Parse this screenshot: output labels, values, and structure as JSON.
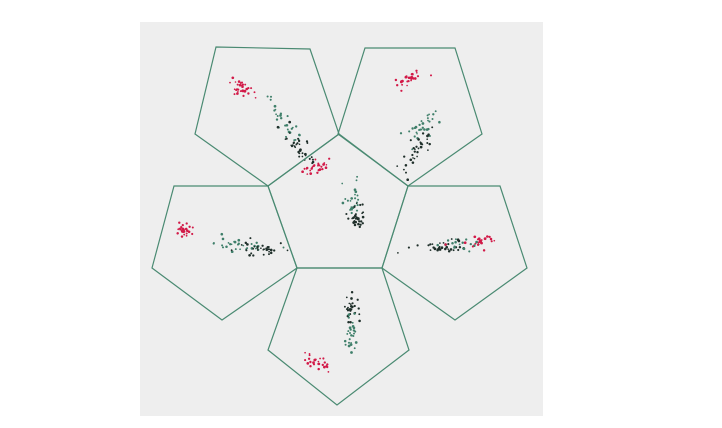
{
  "chart_data": {
    "type": "scatter",
    "description_of_layout": "unfolded-dodecahedron-projection-panels",
    "colors": {
      "outline": "#4a8a72",
      "red": "#d21a48",
      "teal": "#3f7f6a",
      "dark": "#1f2f2a",
      "background": "#eeeeee"
    },
    "panels": [
      {
        "id": "top-left",
        "clusters": [
          {
            "color": "red",
            "center": [
              0.33,
              0.3
            ],
            "spread": [
              0.03,
              0.055
            ],
            "angle": -60,
            "count": 30
          },
          {
            "color": "teal",
            "center": [
              0.62,
              0.54
            ],
            "spread": [
              0.03,
              0.09
            ],
            "angle": -30,
            "count": 28
          },
          {
            "color": "dark",
            "center": [
              0.71,
              0.72
            ],
            "spread": [
              0.03,
              0.08
            ],
            "angle": -35,
            "count": 34
          }
        ]
      },
      {
        "id": "top-right",
        "clusters": [
          {
            "color": "red",
            "center": [
              0.5,
              0.22
            ],
            "spread": [
              0.06,
              0.022
            ],
            "angle": -25,
            "count": 26
          },
          {
            "color": "teal",
            "center": [
              0.58,
              0.58
            ],
            "spread": [
              0.03,
              0.09
            ],
            "angle": 30,
            "count": 30
          },
          {
            "color": "dark",
            "center": [
              0.55,
              0.74
            ],
            "spread": [
              0.03,
              0.08
            ],
            "angle": 25,
            "count": 32
          }
        ]
      },
      {
        "id": "center",
        "clusters": [
          {
            "color": "red",
            "center": [
              0.35,
              0.25
            ],
            "spread": [
              0.06,
              0.025
            ],
            "angle": -20,
            "count": 28
          },
          {
            "color": "teal",
            "center": [
              0.6,
              0.5
            ],
            "spread": [
              0.03,
              0.07
            ],
            "angle": 15,
            "count": 26
          },
          {
            "color": "dark",
            "center": [
              0.62,
              0.62
            ],
            "spread": [
              0.03,
              0.06
            ],
            "angle": 20,
            "count": 30
          }
        ]
      },
      {
        "id": "left",
        "clusters": [
          {
            "color": "red",
            "center": [
              0.22,
              0.32
            ],
            "spread": [
              0.035,
              0.03
            ],
            "angle": 0,
            "count": 28
          },
          {
            "color": "teal",
            "center": [
              0.58,
              0.44
            ],
            "spread": [
              0.1,
              0.025
            ],
            "angle": 5,
            "count": 30
          },
          {
            "color": "dark",
            "center": [
              0.72,
              0.47
            ],
            "spread": [
              0.09,
              0.025
            ],
            "angle": 8,
            "count": 32
          }
        ]
      },
      {
        "id": "right",
        "clusters": [
          {
            "color": "dark",
            "center": [
              0.42,
              0.45
            ],
            "spread": [
              0.11,
              0.022
            ],
            "angle": -5,
            "count": 34
          },
          {
            "color": "teal",
            "center": [
              0.55,
              0.44
            ],
            "spread": [
              0.08,
              0.022
            ],
            "angle": -5,
            "count": 22
          },
          {
            "color": "red",
            "center": [
              0.68,
              0.42
            ],
            "spread": [
              0.06,
              0.02
            ],
            "angle": -8,
            "count": 24
          }
        ]
      },
      {
        "id": "bottom",
        "clusters": [
          {
            "color": "dark",
            "center": [
              0.58,
              0.3
            ],
            "spread": [
              0.03,
              0.07
            ],
            "angle": 5,
            "count": 28
          },
          {
            "color": "teal",
            "center": [
              0.58,
              0.48
            ],
            "spread": [
              0.03,
              0.07
            ],
            "angle": 0,
            "count": 28
          },
          {
            "color": "red",
            "center": [
              0.35,
              0.68
            ],
            "spread": [
              0.06,
              0.03
            ],
            "angle": 20,
            "count": 26
          }
        ]
      }
    ]
  }
}
